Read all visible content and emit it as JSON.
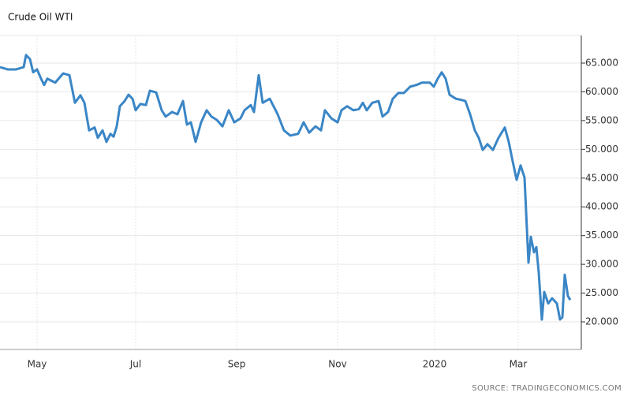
{
  "chart_data": {
    "type": "line",
    "title": "Crude Oil WTI",
    "source": "SOURCE: TRADINGECONOMICS.COM",
    "series": [
      {
        "name": "Crude Oil WTI",
        "color": "#3a86c6",
        "x": [
          -23.5,
          -18.5,
          -13.5,
          -8.5,
          -7,
          -4.5,
          -2.5,
          0,
          2.5,
          4.5,
          6.5,
          11.5,
          16.5,
          20.5,
          24,
          27.5,
          30,
          33,
          36.5,
          38.5,
          41.5,
          44,
          46.5,
          48.5,
          50.5,
          52.5,
          55.5,
          58,
          60.5,
          62.5,
          65.5,
          69,
          71.5,
          75.5,
          79,
          81.5,
          85.5,
          89,
          92.5,
          95,
          97.5,
          100.5,
          104,
          107.5,
          110.5,
          114,
          117.5,
          121.5,
          125,
          129,
          131.5,
          135.5,
          137.5,
          140.5,
          143,
          147.5,
          152.5,
          156.5,
          160.5,
          165.5,
          169,
          172.5,
          176.5,
          180,
          182.5,
          186.5,
          190.5,
          193,
          196.5,
          200.5,
          204,
          206.5,
          209,
          212.5,
          216.5,
          219,
          222.5,
          225.5,
          229,
          232.5,
          236.5,
          240.5,
          244,
          249,
          251.5,
          254,
          256.5,
          259,
          261.5,
          265.5,
          269,
          271.5,
          274.5,
          277.5,
          280,
          282.5,
          285.5,
          289,
          292.5,
          296.5,
          299,
          301.5,
          304,
          306.5,
          309,
          311.5,
          313,
          315,
          316.5,
          318,
          320,
          321.5,
          324,
          326.5,
          329.5,
          331.5,
          333,
          334.5,
          336.5,
          338
        ],
        "values": [
          64.3,
          63.9,
          63.9,
          64.3,
          66.4,
          65.7,
          63.4,
          63.9,
          62.3,
          61.2,
          62.3,
          61.6,
          63.2,
          62.9,
          58.1,
          59.4,
          58.1,
          53.3,
          53.8,
          52.0,
          53.3,
          51.3,
          52.7,
          52.2,
          54.0,
          57.5,
          58.4,
          59.5,
          58.8,
          56.8,
          57.9,
          57.7,
          60.2,
          59.9,
          56.8,
          55.7,
          56.5,
          56.1,
          58.4,
          54.3,
          54.7,
          51.3,
          54.7,
          56.8,
          55.7,
          55.1,
          54.0,
          56.8,
          54.7,
          55.4,
          56.8,
          57.7,
          56.5,
          62.9,
          58.1,
          58.8,
          56.1,
          53.3,
          52.4,
          52.7,
          54.7,
          52.9,
          54.0,
          53.3,
          56.8,
          55.4,
          54.7,
          56.8,
          57.5,
          56.8,
          57.0,
          58.1,
          56.8,
          58.1,
          58.4,
          55.7,
          56.5,
          58.8,
          59.8,
          59.8,
          60.9,
          61.2,
          61.6,
          61.6,
          60.9,
          62.3,
          63.4,
          62.3,
          59.5,
          58.8,
          58.6,
          58.4,
          56.1,
          53.3,
          52.0,
          49.9,
          50.9,
          49.9,
          52.0,
          53.8,
          51.3,
          47.9,
          44.7,
          47.2,
          45.1,
          30.3,
          34.8,
          32.1,
          33.0,
          28.6,
          20.4,
          25.2,
          23.2,
          24.1,
          23.2,
          20.4,
          20.8,
          28.2,
          24.5,
          23.8
        ]
      }
    ],
    "xlim": [
      -23.5,
      345
    ],
    "xticks": [
      {
        "value": 0,
        "label": "May"
      },
      {
        "value": 62.5,
        "label": "Jul"
      },
      {
        "value": 126.5,
        "label": "Sep"
      },
      {
        "value": 190.5,
        "label": "Nov"
      },
      {
        "value": 252,
        "label": "2020"
      },
      {
        "value": 305,
        "label": "Mar"
      }
    ],
    "ylim": [
      15.2,
      69.8
    ],
    "yticks": [
      {
        "value": 20,
        "label": "20.000"
      },
      {
        "value": 25,
        "label": "25.000"
      },
      {
        "value": 30,
        "label": "30.000"
      },
      {
        "value": 35,
        "label": "35.000"
      },
      {
        "value": 40,
        "label": "40.000"
      },
      {
        "value": 45,
        "label": "45.000"
      },
      {
        "value": 50,
        "label": "50.000"
      },
      {
        "value": 55,
        "label": "55.000"
      },
      {
        "value": 60,
        "label": "60.000"
      },
      {
        "value": 65,
        "label": "65.000"
      }
    ],
    "y_axis_side": "right",
    "grid": true
  }
}
